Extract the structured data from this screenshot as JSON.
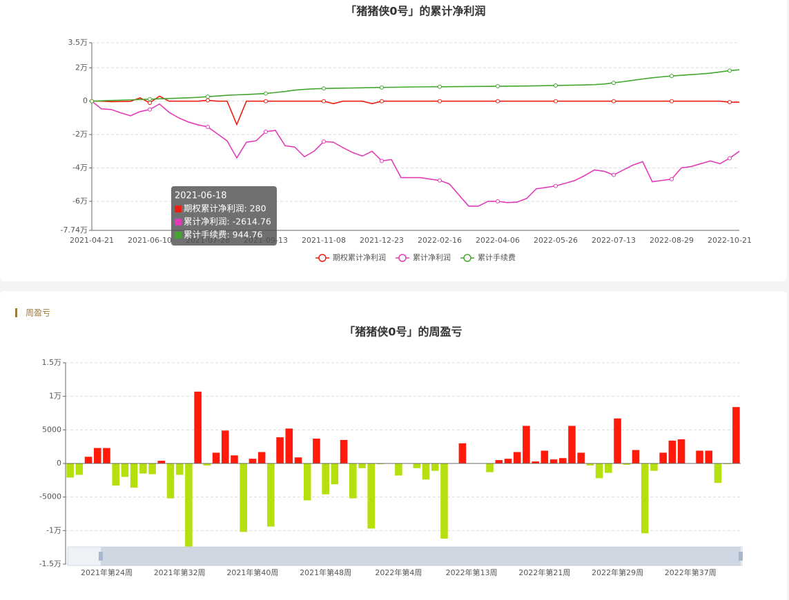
{
  "section_title": "周盈亏",
  "chart_data": [
    {
      "type": "line",
      "title": "「猪猪侠0号」的累计净利润",
      "categories": [
        "2021-04-21",
        null,
        null,
        null,
        null,
        null,
        "2021-06-10",
        null,
        null,
        null,
        null,
        null,
        "2021-07-28",
        null,
        null,
        null,
        null,
        null,
        "2021-09-13",
        null,
        null,
        null,
        null,
        null,
        "2021-11-08",
        null,
        null,
        null,
        null,
        null,
        "2021-12-23",
        null,
        null,
        null,
        null,
        null,
        "2022-02-16",
        null,
        null,
        null,
        null,
        null,
        "2022-04-06",
        null,
        null,
        null,
        null,
        null,
        "2022-05-26",
        null,
        null,
        null,
        null,
        null,
        "2022-07-13",
        null,
        null,
        null,
        null,
        null,
        "2022-08-29",
        null,
        null,
        null,
        null,
        null,
        "2022-10-21",
        null
      ],
      "series": [
        {
          "name": "期权累计净利润",
          "color": "#ee1d10",
          "values": [
            0,
            0,
            -300,
            -200,
            -100,
            2000,
            -1000,
            3000,
            0,
            0,
            0,
            0,
            500,
            0,
            0,
            -14000,
            0,
            0,
            0,
            0,
            0,
            0,
            0,
            0,
            0,
            -1500,
            0,
            0,
            0,
            -1500,
            0,
            0,
            0,
            0,
            0,
            0,
            0,
            0,
            0,
            0,
            0,
            0,
            0,
            0,
            0,
            0,
            0,
            0,
            0,
            0,
            0,
            0,
            0,
            0,
            0,
            0,
            0,
            0,
            0,
            0,
            0,
            0,
            0,
            0,
            0,
            0,
            -600,
            -600
          ]
        },
        {
          "name": "累计净利润",
          "color": "#e23bb8",
          "values": [
            0,
            -4600,
            -5000,
            -7000,
            -8750,
            -6250,
            -5000,
            -1700,
            -6700,
            -10000,
            -12500,
            -14200,
            -15400,
            -19600,
            -23750,
            -34000,
            -24600,
            -23750,
            -18300,
            -17500,
            -26700,
            -27500,
            -33300,
            -30000,
            -24200,
            -24600,
            -27900,
            -30800,
            -32900,
            -30000,
            -35800,
            -35000,
            -45800,
            -45800,
            -45800,
            -46700,
            -47500,
            -49600,
            -56300,
            -62900,
            -62900,
            -60000,
            -60000,
            -60800,
            -60500,
            -58300,
            -52500,
            -51700,
            -50800,
            -49200,
            -47500,
            -44600,
            -41200,
            -42000,
            -44200,
            -41200,
            -38300,
            -36250,
            -48300,
            -47500,
            -46700,
            -40000,
            -39200,
            -37500,
            -35800,
            -37500,
            -34200,
            -30000
          ]
        },
        {
          "name": "累计手续费",
          "color": "#43a62f",
          "values": [
            0,
            200,
            400,
            600,
            800,
            1000,
            1200,
            1400,
            1600,
            1800,
            2000,
            2300,
            2700,
            3100,
            3500,
            3800,
            4000,
            4300,
            4600,
            5200,
            5800,
            6600,
            7100,
            7400,
            7600,
            7700,
            7800,
            7900,
            8000,
            8100,
            8200,
            8300,
            8400,
            8500,
            8550,
            8600,
            8650,
            8700,
            8750,
            8800,
            8850,
            8900,
            8950,
            9000,
            9050,
            9100,
            9200,
            9300,
            9400,
            9500,
            9600,
            9700,
            9900,
            10300,
            11000,
            11700,
            12500,
            13300,
            14000,
            14600,
            15100,
            15500,
            15900,
            16300,
            16800,
            17500,
            18300,
            18800
          ]
        }
      ],
      "ylim": [
        -77400,
        35000
      ],
      "yticks": [
        {
          "value": 35000,
          "label": "3.5万"
        },
        {
          "value": 20000,
          "label": "2万"
        },
        0,
        {
          "value": -20000,
          "label": "-2万"
        },
        {
          "value": -40000,
          "label": "-4万"
        },
        {
          "value": -60000,
          "label": "-6万"
        },
        {
          "value": -77400,
          "label": "-7.74万"
        }
      ],
      "grid": true,
      "legend": "bottom",
      "tooltip": {
        "title": "2021-06-18",
        "rows": [
          "期权累计净利润: 280",
          "累计净利润: -2614.76",
          "累计手续费: 944.76"
        ]
      }
    },
    {
      "type": "bar",
      "title": "「猪猪侠0号」的周盈亏",
      "categories": [
        null,
        null,
        null,
        null,
        "2021年第24周",
        null,
        null,
        null,
        null,
        null,
        null,
        null,
        "2021年第32周",
        null,
        null,
        null,
        null,
        null,
        null,
        null,
        "2021年第40周",
        null,
        null,
        null,
        null,
        null,
        null,
        null,
        "2021年第48周",
        null,
        null,
        null,
        null,
        null,
        null,
        null,
        "2022年第4周",
        null,
        null,
        null,
        null,
        null,
        null,
        null,
        "2022年第13周",
        null,
        null,
        null,
        null,
        null,
        null,
        null,
        "2022年第21周",
        null,
        null,
        null,
        null,
        null,
        null,
        null,
        "2022年第29周",
        null,
        null,
        null,
        null,
        null,
        null,
        null,
        "2022年第37周",
        null,
        null,
        null,
        null,
        null
      ],
      "values": [
        -2100,
        -1700,
        1000,
        2300,
        2300,
        -3300,
        -2000,
        -3600,
        -1500,
        -1600,
        400,
        -5200,
        -1700,
        -12500,
        10700,
        -300,
        1600,
        4900,
        1200,
        -10200,
        700,
        1700,
        -9400,
        3900,
        5200,
        900,
        -5500,
        3700,
        -4600,
        -3100,
        3500,
        -5200,
        -700,
        -9700,
        -100,
        0,
        -1800,
        0,
        -700,
        -2400,
        -1100,
        -11200,
        0,
        3000,
        0,
        0,
        -1300,
        500,
        700,
        1700,
        5600,
        300,
        1900,
        600,
        800,
        5600,
        1600,
        -300,
        -2200,
        -1400,
        6700,
        -200,
        2000,
        -10400,
        -1100,
        1600,
        3400,
        3600,
        0,
        1900,
        1900,
        -2900,
        -100,
        8400
      ],
      "positive_color": "#ff1a0a",
      "negative_color": "#b5e00d",
      "ylim": [
        -15000,
        15000
      ],
      "yticks": [
        {
          "value": 15000,
          "label": "1.5万"
        },
        {
          "value": 10000,
          "label": "1万"
        },
        5000,
        0,
        -5000,
        {
          "value": -10000,
          "label": "-1万"
        },
        {
          "value": -15000,
          "label": "-1.5万"
        }
      ],
      "grid": true
    }
  ]
}
